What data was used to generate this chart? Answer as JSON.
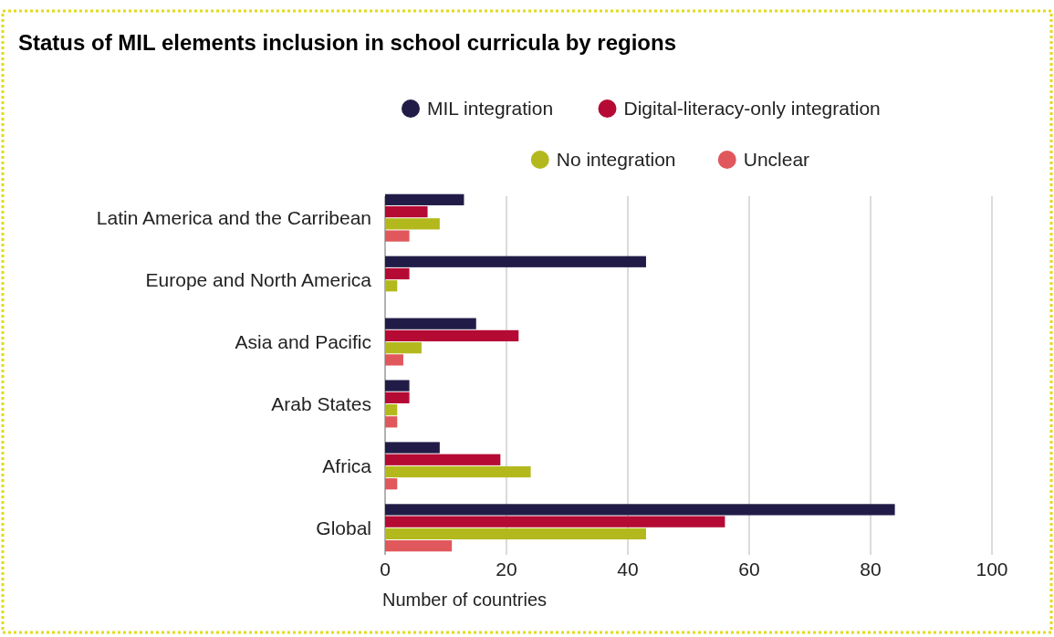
{
  "chart_data": {
    "type": "bar",
    "orientation": "horizontal",
    "title": "Status of MIL elements inclusion in school curricula by regions",
    "xlabel": "Number of countries",
    "categories": [
      "Latin America and the Carribean",
      "Europe and North America",
      "Asia and Pacific",
      "Arab States",
      "Africa",
      "Global"
    ],
    "series": [
      {
        "name": "MIL integration",
        "color": "#211c47",
        "values": [
          13,
          43,
          15,
          4,
          9,
          84
        ]
      },
      {
        "name": "Digital-literacy-only integration",
        "color": "#b50a34",
        "values": [
          7,
          4,
          22,
          4,
          19,
          56
        ]
      },
      {
        "name": "No integration",
        "color": "#b3b91d",
        "values": [
          9,
          2,
          6,
          2,
          24,
          43
        ]
      },
      {
        "name": "Unclear",
        "color": "#e0585c",
        "values": [
          4,
          0,
          3,
          2,
          2,
          11
        ]
      }
    ],
    "xlim": [
      0,
      100
    ],
    "xticks": [
      0,
      20,
      40,
      60,
      80,
      100
    ],
    "grid": "x",
    "legend": "top"
  }
}
